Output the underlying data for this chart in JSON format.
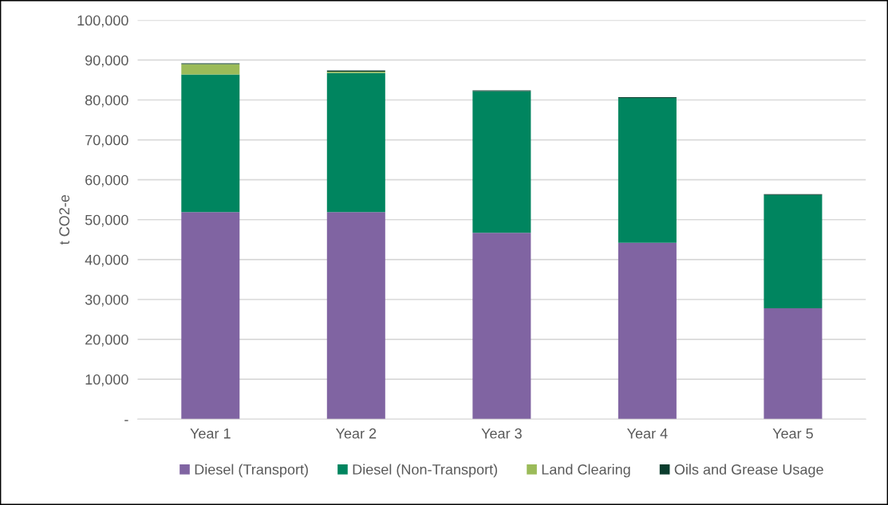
{
  "chart_data": {
    "type": "bar",
    "stacked": true,
    "ylabel": "t CO2-e",
    "categories": [
      "Year 1",
      "Year 2",
      "Year 3",
      "Year 4",
      "Year 5"
    ],
    "series": [
      {
        "name": "Diesel (Transport)",
        "color": "#8064a2",
        "values": [
          51900,
          51900,
          46700,
          44200,
          27800
        ]
      },
      {
        "name": "Diesel (Non-Transport)",
        "color": "#00855f",
        "values": [
          34500,
          34900,
          35500,
          36300,
          28400
        ]
      },
      {
        "name": "Land Clearing",
        "color": "#9bbb59",
        "values": [
          2600,
          300,
          null,
          null,
          null
        ]
      },
      {
        "name": "Oils and Grease Usage",
        "color": "#0b3d2e",
        "values": [
          200,
          300,
          200,
          200,
          200
        ]
      }
    ],
    "ylim": [
      0,
      100000
    ],
    "yticks": [
      {
        "value": 0,
        "label": "-"
      },
      {
        "value": 10000,
        "label": "10,000"
      },
      {
        "value": 20000,
        "label": "20,000"
      },
      {
        "value": 30000,
        "label": "30,000"
      },
      {
        "value": 40000,
        "label": "40,000"
      },
      {
        "value": 50000,
        "label": "50,000"
      },
      {
        "value": 60000,
        "label": "60,000"
      },
      {
        "value": 70000,
        "label": "70,000"
      },
      {
        "value": 80000,
        "label": "80,000"
      },
      {
        "value": 90000,
        "label": "90,000"
      },
      {
        "value": 100000,
        "label": "100,000"
      }
    ],
    "grid": "y",
    "legend": "bottom"
  }
}
